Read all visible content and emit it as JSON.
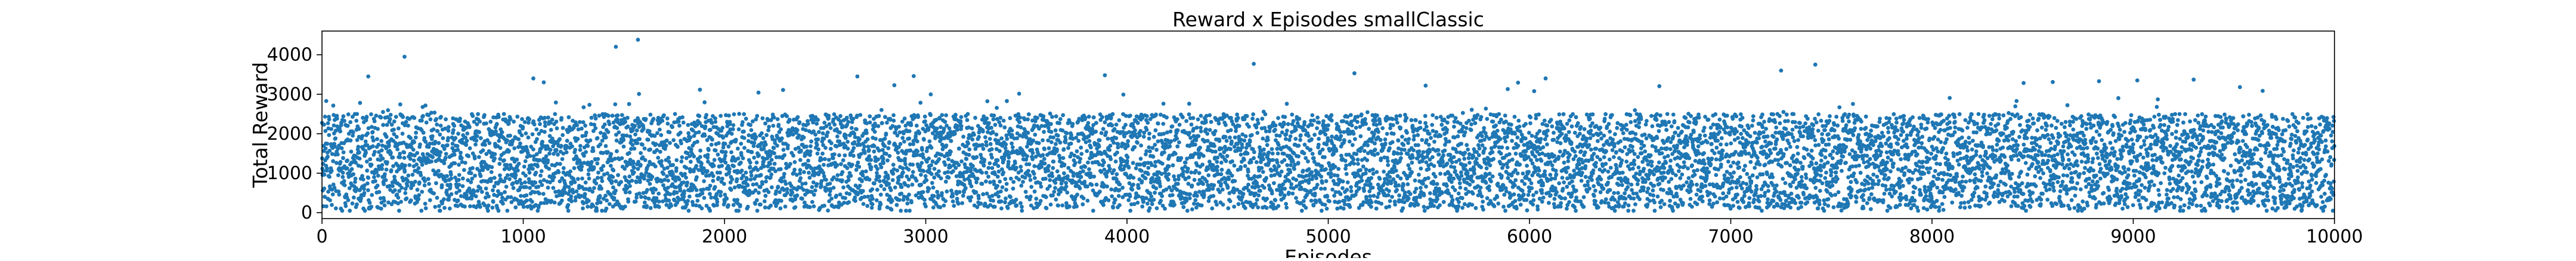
{
  "chart_data": {
    "type": "scatter",
    "title": "Reward x Episodes smallClassic",
    "xlabel": "Episodes",
    "ylabel": "Total Reward",
    "xlim": [
      0,
      10000
    ],
    "ylim": [
      -150,
      4600
    ],
    "xticks": [
      0,
      1000,
      2000,
      3000,
      4000,
      5000,
      6000,
      7000,
      8000,
      9000,
      10000
    ],
    "yticks": [
      0,
      1000,
      2000,
      3000,
      4000
    ],
    "grid": false,
    "legend": "none",
    "marker_color": "#1f77b4",
    "n_points": 10000,
    "point_summary": {
      "typical_min": 100,
      "typical_max": 2500,
      "center": 1300
    },
    "notable_points": [
      {
        "x": 410,
        "y": 3950
      },
      {
        "x": 1460,
        "y": 4200
      },
      {
        "x": 1570,
        "y": 4380
      },
      {
        "x": 1050,
        "y": 3400
      },
      {
        "x": 230,
        "y": 3450
      },
      {
        "x": 2660,
        "y": 3450
      },
      {
        "x": 2940,
        "y": 3460
      },
      {
        "x": 3890,
        "y": 3480
      },
      {
        "x": 4630,
        "y": 3770
      },
      {
        "x": 5130,
        "y": 3530
      },
      {
        "x": 6080,
        "y": 3400
      },
      {
        "x": 7250,
        "y": 3600
      },
      {
        "x": 7420,
        "y": 3750
      },
      {
        "x": 8600,
        "y": 3310
      },
      {
        "x": 8830,
        "y": 3330
      },
      {
        "x": 9020,
        "y": 3350
      },
      {
        "x": 9300,
        "y": 3370
      },
      {
        "x": 9530,
        "y": 3180
      }
    ]
  }
}
